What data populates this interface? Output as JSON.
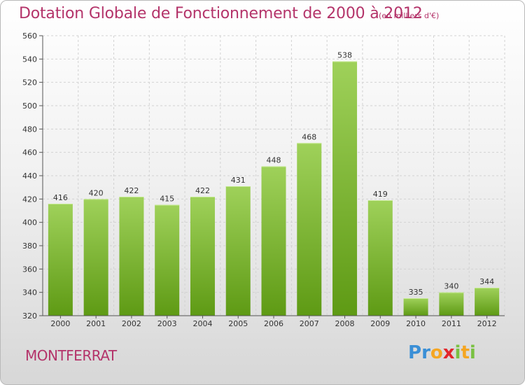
{
  "header": {
    "title": "Dotation Globale de Fonctionnement de 2000 à 2012",
    "subtitle": "(en milliers d'€)"
  },
  "footer": {
    "place": "MONTFERRAT",
    "logo_text": "Proxiti"
  },
  "colors": {
    "accent": "#b4346a",
    "bar_top": "#9fd15a",
    "bar_bottom": "#5e9a14"
  },
  "chart_data": {
    "type": "bar",
    "title": "Dotation Globale de Fonctionnement de 2000 à 2012",
    "subtitle": "(en milliers d'€)",
    "xlabel": "",
    "ylabel": "",
    "categories": [
      "2000",
      "2001",
      "2002",
      "2003",
      "2004",
      "2005",
      "2006",
      "2007",
      "2008",
      "2009",
      "2010",
      "2011",
      "2012"
    ],
    "values": [
      416,
      420,
      422,
      415,
      422,
      431,
      448,
      468,
      538,
      419,
      335,
      340,
      344
    ],
    "ylim": [
      320,
      560
    ],
    "yticks": [
      320,
      340,
      360,
      380,
      400,
      420,
      440,
      460,
      480,
      500,
      520,
      540,
      560
    ],
    "grid": true,
    "legend": "none"
  }
}
